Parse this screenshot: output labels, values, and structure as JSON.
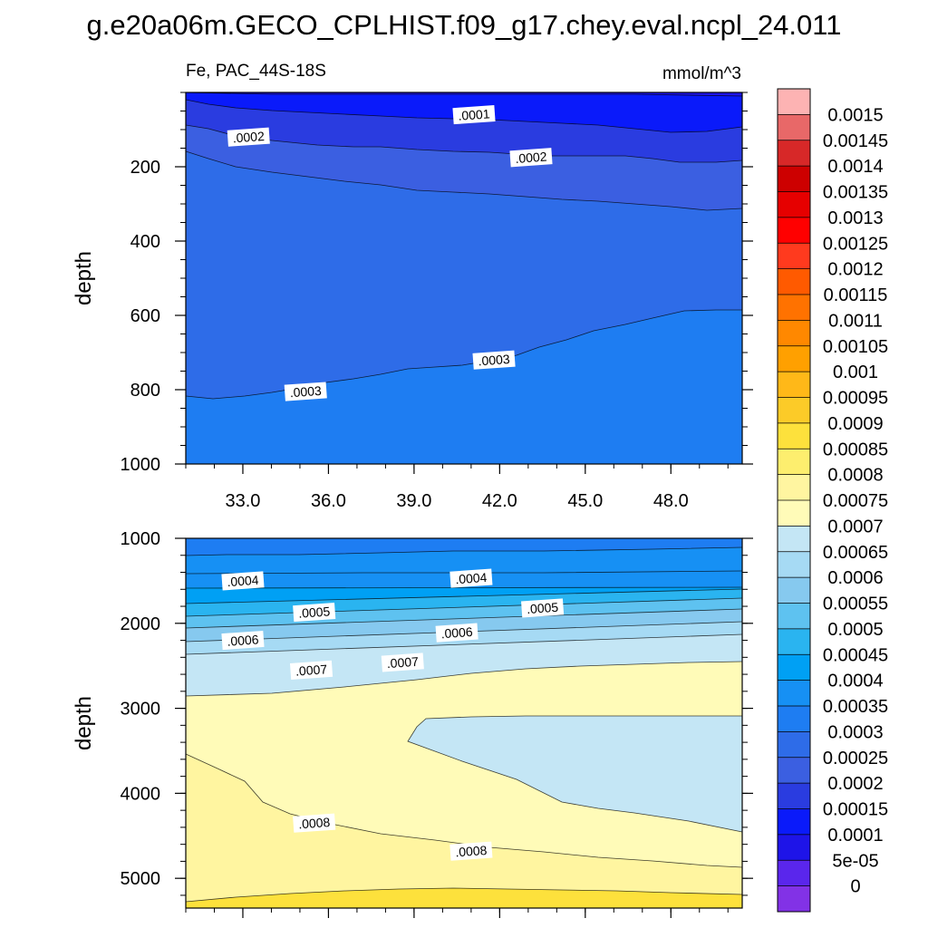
{
  "figure": {
    "title": "g.e20a06m.GECO_CPLHIST.f09_g17.chey.eval.ncpl_24.011",
    "left_subtitle": "Fe, PAC_44S-18S",
    "right_subtitle": "mmol/m^3"
  },
  "chart_data": [
    {
      "type": "contour",
      "panel": "upper",
      "variable": "Fe",
      "region": "PAC_44S-18S",
      "units": "mmol/m^3",
      "ylabel": "depth",
      "xlim": [
        31.0,
        50.5
      ],
      "ylim": [
        1000,
        0
      ],
      "x_ticks": [
        "33.0",
        "36.0",
        "39.0",
        "42.0",
        "45.0",
        "48.0"
      ],
      "y_ticks": [
        "200",
        "400",
        "600",
        "800",
        "1000"
      ],
      "contour_levels": [
        0.0001,
        0.00015,
        0.0002,
        0.00025,
        0.0003
      ],
      "contour_labels": [
        {
          "text": ".0001",
          "x": 41.1,
          "depth": 60
        },
        {
          "text": ".0002",
          "x": 33.2,
          "depth": 120
        },
        {
          "text": ".0002",
          "x": 43.1,
          "depth": 175
        },
        {
          "text": ".0003",
          "x": 35.2,
          "depth": 805
        },
        {
          "text": ".0003",
          "x": 41.8,
          "depth": 720
        }
      ]
    },
    {
      "type": "contour",
      "panel": "lower",
      "variable": "Fe",
      "units": "mmol/m^3",
      "ylabel": "depth",
      "xlim": [
        31.0,
        50.5
      ],
      "ylim": [
        5350,
        1000
      ],
      "y_ticks": [
        "1000",
        "2000",
        "3000",
        "4000",
        "5000"
      ],
      "contour_levels": [
        0.0004,
        0.00045,
        0.0005,
        0.00055,
        0.0006,
        0.00065,
        0.0007,
        0.00075,
        0.0008,
        0.00085
      ],
      "contour_labels": [
        {
          "text": ".0004",
          "x": 33.0,
          "depth": 1500
        },
        {
          "text": ".0004",
          "x": 41.0,
          "depth": 1470
        },
        {
          "text": ".0005",
          "x": 35.5,
          "depth": 1870
        },
        {
          "text": ".0005",
          "x": 43.5,
          "depth": 1820
        },
        {
          "text": ".0006",
          "x": 33.0,
          "depth": 2200
        },
        {
          "text": ".0006",
          "x": 40.5,
          "depth": 2110
        },
        {
          "text": ".0007",
          "x": 35.4,
          "depth": 2550
        },
        {
          "text": ".0007",
          "x": 38.6,
          "depth": 2460
        },
        {
          "text": ".0008",
          "x": 35.5,
          "depth": 4350
        },
        {
          "text": ".0008",
          "x": 41.0,
          "depth": 4680
        }
      ]
    }
  ],
  "colorbar": {
    "labels": [
      "0.0015",
      "0.00145",
      "0.0014",
      "0.00135",
      "0.0013",
      "0.00125",
      "0.0012",
      "0.00115",
      "0.0011",
      "0.00105",
      "0.001",
      "0.00095",
      "0.0009",
      "0.00085",
      "0.0008",
      "0.00075",
      "0.0007",
      "0.00065",
      "0.0006",
      "0.00055",
      "0.0005",
      "0.00045",
      "0.0004",
      "0.00035",
      "0.0003",
      "0.00025",
      "0.0002",
      "0.00015",
      "0.0001",
      "5e-05",
      "0"
    ],
    "colors_top_to_bottom": [
      "#fdb3b3",
      "#e86868",
      "#d72828",
      "#cd0000",
      "#e60000",
      "#ff0000",
      "#ff3a1e",
      "#ff5a00",
      "#ff7200",
      "#ff8800",
      "#ffa000",
      "#ffb818",
      "#fccb28",
      "#fde13c",
      "#fdee6e",
      "#fff5a0",
      "#fffbb8",
      "#c4e6f5",
      "#a6daf4",
      "#86c9ef",
      "#5ec2f0",
      "#2ab4f0",
      "#00a0f4",
      "#1690f4",
      "#1e7df2",
      "#2e6ce8",
      "#3b5fe1",
      "#2a3ce0",
      "#0a1afa",
      "#1e14e8",
      "#5a26ec",
      "#8232e6"
    ]
  }
}
